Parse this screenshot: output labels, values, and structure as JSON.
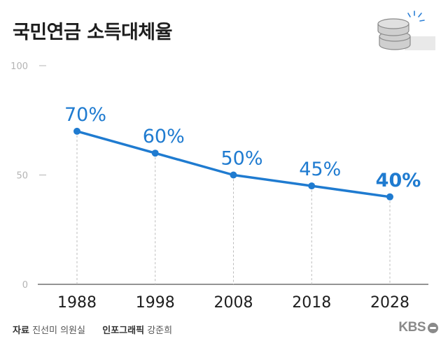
{
  "title": "국민연금 소득대체율",
  "footer": {
    "source_label": "자료",
    "source_value": "진선미 의원실",
    "graphic_label": "인포그래픽",
    "graphic_value": "강준희"
  },
  "logo": {
    "text": "KBS"
  },
  "icons": {
    "decoration": "coin-stack-icon",
    "logo_mark": "kbs-logo-icon"
  },
  "colors": {
    "line": "#1f7bd0",
    "point": "#1f7bd0",
    "axis": "#555555",
    "gridline": "#bbbbbb",
    "ytick": "#b4b4b4",
    "title": "#1e1e1e"
  },
  "chart_data": {
    "type": "line",
    "title": "국민연금 소득대체율",
    "categories": [
      "1988",
      "1998",
      "2008",
      "2018",
      "2028"
    ],
    "values": [
      70,
      60,
      50,
      45,
      40
    ],
    "data_labels": [
      "70%",
      "60%",
      "50%",
      "45%",
      "40%"
    ],
    "ylim": [
      0,
      100
    ],
    "yticks": [
      "0",
      "50",
      "100"
    ],
    "xlabel": "",
    "ylabel": "",
    "grid": "dashed vertical drop lines at each point",
    "legend": "none"
  }
}
